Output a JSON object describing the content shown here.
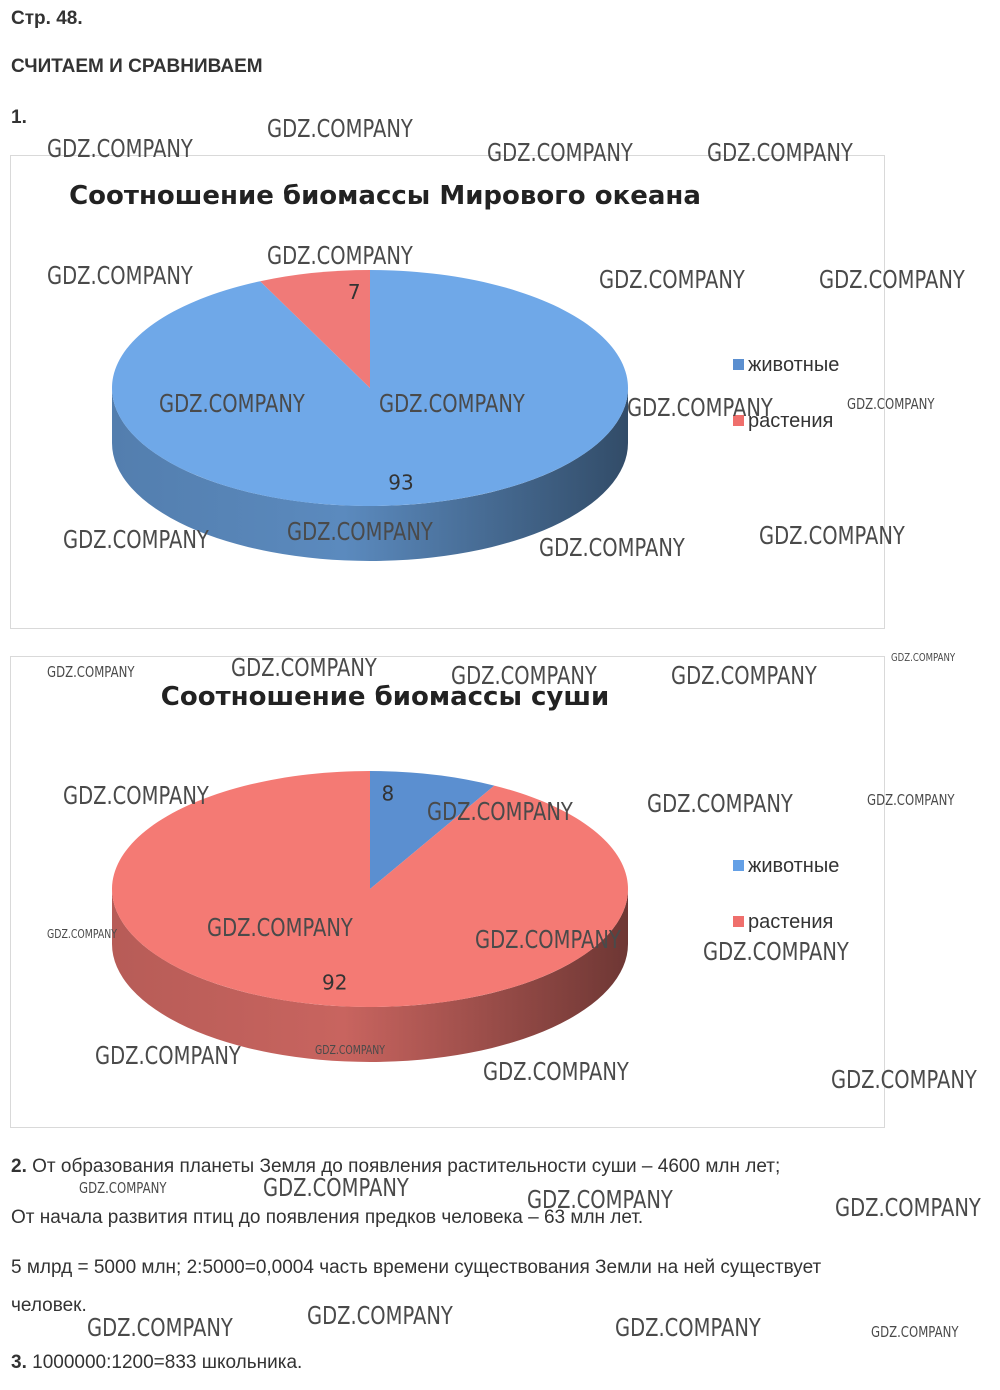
{
  "page": {
    "header": "Стр. 48.",
    "section_title": "СЧИТАЕМ И СРАВНИВАЕМ",
    "task1_num": "1.",
    "task2_num": "2.",
    "task2_line1": "От образования планеты Земля до появления растительности суши – 4600 млн лет;",
    "task2_line2": "От начала развития птиц до появления предков человека – 63 млн лет.",
    "task2_line3": "5 млрд = 5000 млн; 2:5000=0,0004 часть времени существования Земли на ней существует",
    "task2_line4": "человек.",
    "task3_num": "3.",
    "task3_text": "1000000:1200=833 школьника."
  },
  "watermark": "GDZ.COMPANY",
  "chart_data": [
    {
      "type": "pie",
      "title": "Соотношение биомассы Мирового океана",
      "categories": [
        "животные",
        "растения"
      ],
      "values": [
        93,
        7
      ],
      "colors": [
        "#6fa8e8",
        "#f07a78"
      ],
      "legend_colors": [
        "#5b8fd0",
        "#ef6f6c"
      ],
      "legend_position": "right"
    },
    {
      "type": "pie",
      "title": "Соотношение биомассы суши",
      "categories": [
        "животные",
        "растения"
      ],
      "values": [
        8,
        92
      ],
      "colors": [
        "#5b8fd0",
        "#f47a74"
      ],
      "legend_colors": [
        "#64a0e6",
        "#ef6f6c"
      ],
      "legend_position": "right"
    }
  ]
}
